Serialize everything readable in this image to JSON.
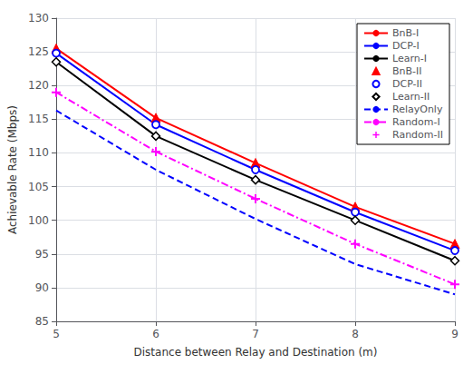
{
  "chart_data": {
    "type": "line",
    "x": [
      5,
      6,
      7,
      8,
      9
    ],
    "series": [
      {
        "name": "BnB-I",
        "color": "#ff0000",
        "values": [
          125.5,
          115.2,
          108.5,
          102.0,
          96.5
        ],
        "marker": "none",
        "line_style": "solid"
      },
      {
        "name": "DCP-I",
        "color": "#0000ff",
        "values": [
          124.8,
          114.2,
          107.5,
          101.2,
          95.5
        ],
        "marker": "none",
        "line_style": "solid"
      },
      {
        "name": "Learn-I",
        "color": "#000000",
        "values": [
          123.5,
          112.5,
          106.0,
          100.0,
          94.0
        ],
        "marker": "none",
        "line_style": "solid"
      },
      {
        "name": "BnB-II",
        "color": "#ff0000",
        "values": [
          125.5,
          115.2,
          108.5,
          102.0,
          96.5
        ],
        "marker": "triangle",
        "line_style": "none"
      },
      {
        "name": "DCP-II",
        "color": "#0000ff",
        "values": [
          124.8,
          114.2,
          107.5,
          101.2,
          95.5
        ],
        "marker": "circle_open",
        "line_style": "none"
      },
      {
        "name": "Learn-II",
        "color": "#000000",
        "values": [
          123.5,
          112.5,
          106.0,
          100.0,
          94.0
        ],
        "marker": "diamond_open",
        "line_style": "none"
      },
      {
        "name": "RelayOnly",
        "color": "#0000ff",
        "values": [
          116.3,
          107.5,
          100.2,
          93.5,
          89.0
        ],
        "marker": "none",
        "line_style": "dashed"
      },
      {
        "name": "Random-I",
        "color": "#ff00ff",
        "values": [
          119.0,
          110.2,
          103.2,
          96.5,
          90.5
        ],
        "marker": "none",
        "line_style": "dashdot"
      },
      {
        "name": "Random-II",
        "color": "#ff00ff",
        "values": [
          119.0,
          110.2,
          103.2,
          96.5,
          90.5
        ],
        "marker": "plus",
        "line_style": "none"
      }
    ],
    "xlabel": "Distance between Relay and Destination (m)",
    "ylabel": "Achievable Rate (Mbps)",
    "xlim": [
      5,
      9
    ],
    "ylim": [
      85,
      130
    ],
    "xticks": [
      5,
      6,
      7,
      8,
      9
    ],
    "yticks": [
      85,
      90,
      95,
      100,
      105,
      110,
      115,
      120,
      125,
      130
    ],
    "grid": true,
    "legend": "upper right"
  }
}
